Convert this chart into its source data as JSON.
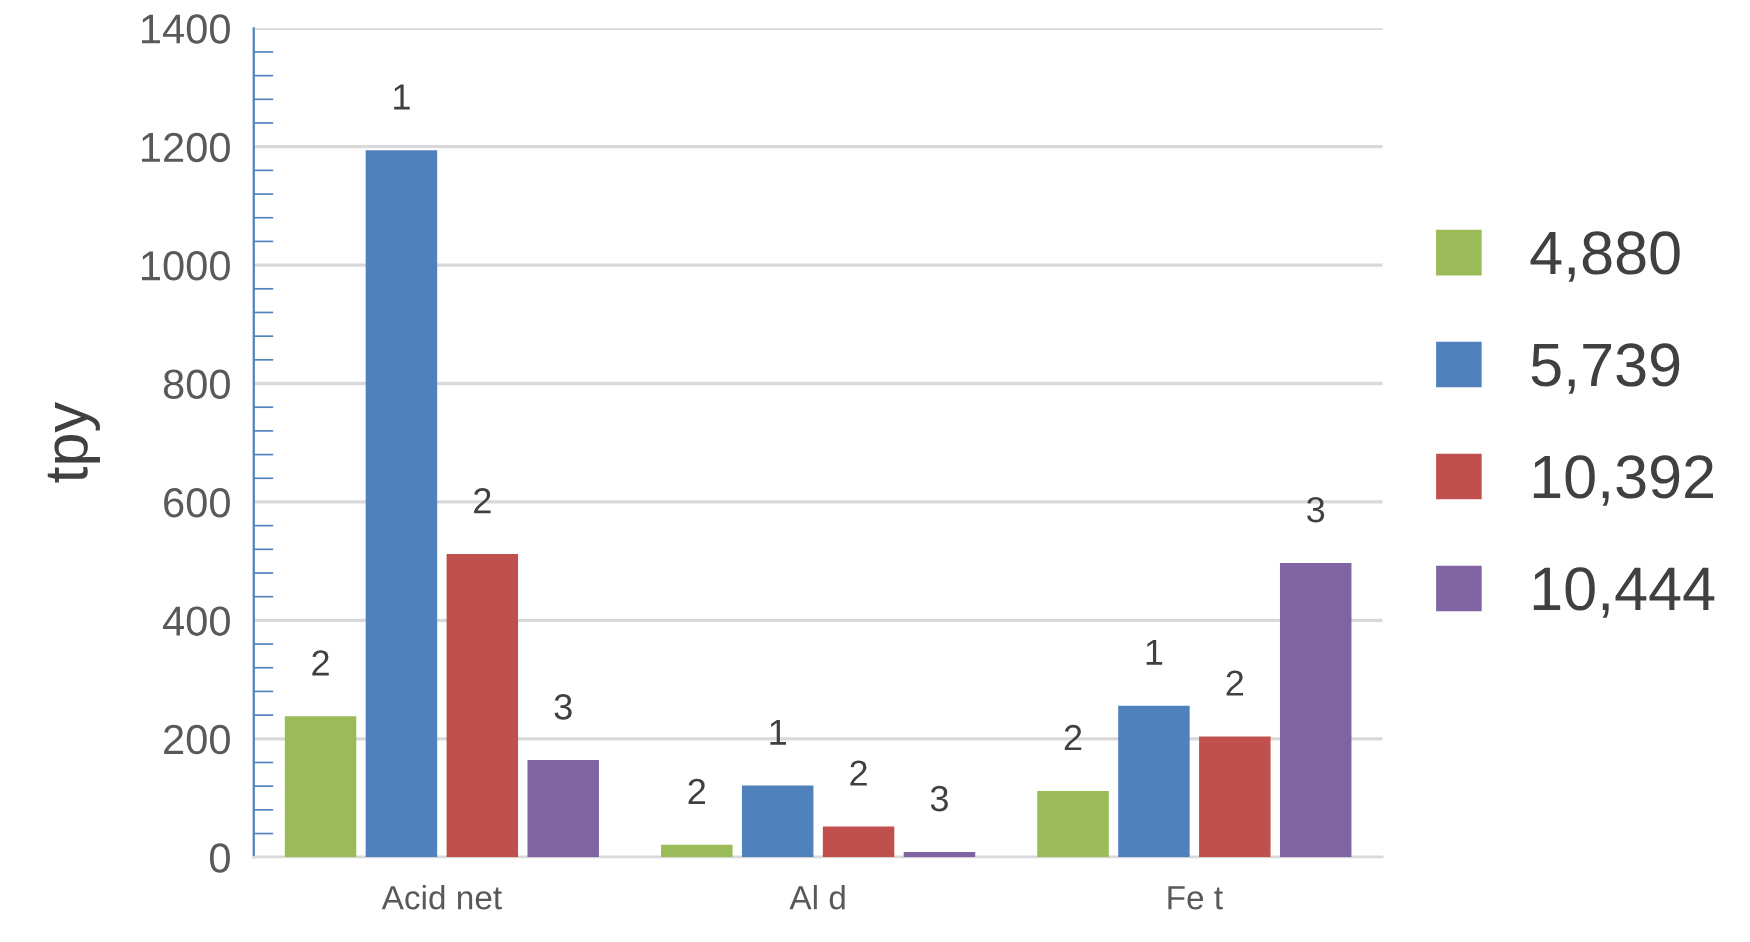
{
  "chart_data": {
    "type": "bar",
    "ylabel": "tpy",
    "categories": [
      "Acid net",
      "Al d",
      "Fe t"
    ],
    "series": [
      {
        "name": "4,880",
        "color": "#9bbb59",
        "values": [
          238,
          21,
          112
        ]
      },
      {
        "name": "5,739",
        "color": "#4f81bd",
        "values": [
          1194,
          121,
          256
        ]
      },
      {
        "name": "10,392",
        "color": "#c0504d",
        "values": [
          512,
          52,
          204
        ]
      },
      {
        "name": "10,444",
        "color": "#8064a2",
        "values": [
          164,
          9,
          497
        ]
      }
    ],
    "annotations": [
      "2",
      "1",
      "2",
      "3",
      "2",
      "1",
      "2",
      "3",
      "2",
      "1",
      "2",
      "3"
    ],
    "ylim": [
      0,
      1400
    ],
    "yticks": [
      0,
      {
        "value": 40,
        "label": null
      },
      {
        "value": 80,
        "label": null
      },
      {
        "value": 120,
        "label": null
      },
      {
        "value": 160,
        "label": null
      },
      200,
      {
        "value": 240,
        "label": null
      },
      {
        "value": 280,
        "label": null
      },
      {
        "value": 320,
        "label": null
      },
      {
        "value": 360,
        "label": null
      },
      400,
      {
        "value": 440,
        "label": null
      },
      {
        "value": 480,
        "label": null
      },
      {
        "value": 520,
        "label": null
      },
      {
        "value": 560,
        "label": null
      },
      600,
      {
        "value": 640,
        "label": null
      },
      {
        "value": 680,
        "label": null
      },
      {
        "value": 720,
        "label": null
      },
      {
        "value": 760,
        "label": null
      },
      800,
      {
        "value": 840,
        "label": null
      },
      {
        "value": 880,
        "label": null
      },
      {
        "value": 920,
        "label": null
      },
      {
        "value": 960,
        "label": null
      },
      1000,
      {
        "value": 1040,
        "label": null
      },
      {
        "value": 1080,
        "label": null
      },
      {
        "value": 1120,
        "label": null
      },
      {
        "value": 1160,
        "label": null
      },
      1200,
      {
        "value": 1240,
        "label": null
      },
      {
        "value": 1280,
        "label": null
      },
      {
        "value": 1320,
        "label": null
      },
      {
        "value": 1360,
        "label": null
      },
      1400
    ],
    "grid": "y",
    "legend": "right"
  }
}
